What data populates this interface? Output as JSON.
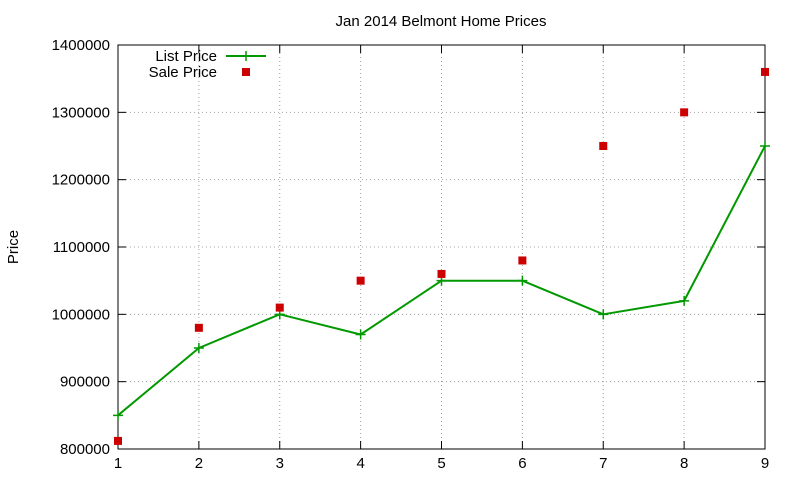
{
  "chart_data": {
    "type": "line",
    "title": "Jan 2014 Belmont Home Prices",
    "xlabel": "",
    "ylabel": "Price",
    "x": [
      1,
      2,
      3,
      4,
      5,
      6,
      7,
      8,
      9
    ],
    "xlim": [
      1,
      9
    ],
    "ylim": [
      800000,
      1400000
    ],
    "xticks": [
      "1",
      "2",
      "3",
      "4",
      "5",
      "6",
      "7",
      "8",
      "9"
    ],
    "yticks": [
      "800000",
      "900000",
      "1000000",
      "1100000",
      "1200000",
      "1300000",
      "1400000"
    ],
    "grid": true,
    "legend_position": "top-left",
    "series": [
      {
        "name": "List Price",
        "style": "line-with-plus-markers",
        "color": "#009900",
        "values": [
          850000,
          950000,
          1000000,
          970000,
          1050000,
          1050000,
          1000000,
          1020000,
          1250000
        ]
      },
      {
        "name": "Sale Price",
        "style": "square-points",
        "color": "#cc0000",
        "values": [
          812000,
          980000,
          1010000,
          1050000,
          1060000,
          1080000,
          1250000,
          1300000,
          1360000
        ]
      }
    ]
  }
}
